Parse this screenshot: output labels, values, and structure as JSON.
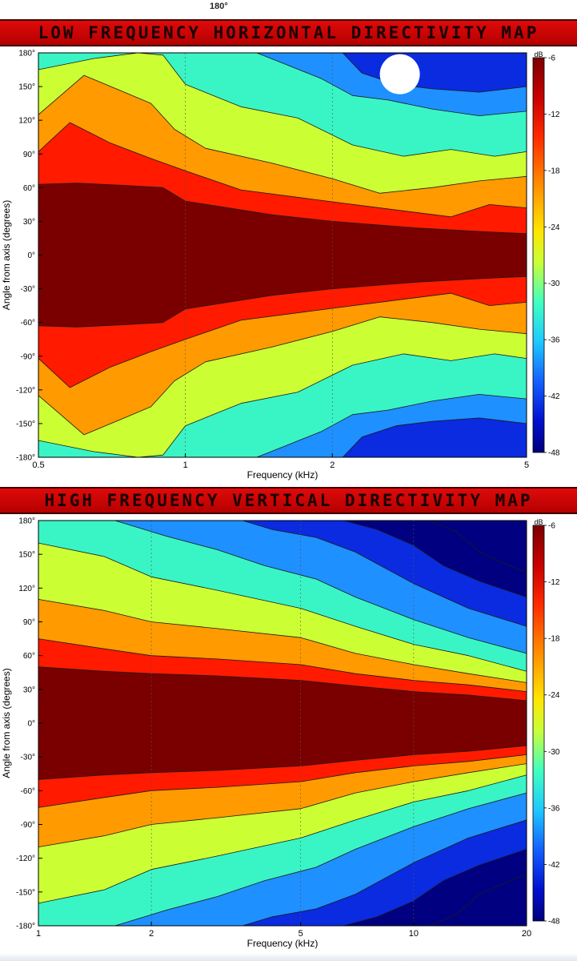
{
  "page": {
    "top_label": "180°"
  },
  "chart_data": [
    {
      "type": "heatmap",
      "title": "LOW FREQUENCY HORIZONTAL DIRECTIVITY MAP",
      "xlabel": "Frequency (kHz)",
      "ylabel": "Angle from axis (degrees)",
      "xscale": "log",
      "xlim": [
        0.5,
        5
      ],
      "ylim": [
        -180,
        180
      ],
      "x_ticks": [
        0.5,
        1,
        2,
        5
      ],
      "x_tick_labels": [
        "0.5",
        "1",
        "2",
        "5"
      ],
      "y_ticks": [
        180,
        150,
        120,
        90,
        60,
        30,
        0,
        -30,
        -60,
        -90,
        -120,
        -150,
        -180
      ],
      "y_tick_labels": [
        "180°",
        "150°",
        "120°",
        "90°",
        "60°",
        "30°",
        "0°",
        "-30°",
        "-60°",
        "-90°",
        "-120°",
        "-150°",
        "-180°"
      ],
      "grid": true,
      "colorbar": {
        "label": "dB",
        "range": [
          -48,
          -6
        ],
        "ticks": [
          -6,
          -12,
          -18,
          -24,
          -30,
          -36,
          -42,
          -48
        ],
        "tick_labels": [
          "-6",
          "-12",
          "-18",
          "-24",
          "-30",
          "-36",
          "-42",
          "-48"
        ]
      },
      "contour_levels": [
        {
          "level": -6,
          "color": "#7a0000"
        },
        {
          "level": -12,
          "color": "#ff1a00"
        },
        {
          "level": -18,
          "color": "#ff9a00"
        },
        {
          "level": -24,
          "color": "#ccff33"
        },
        {
          "level": -30,
          "color": "#39f5c5"
        },
        {
          "level": -36,
          "color": "#1e90ff"
        },
        {
          "level": -42,
          "color": "#0a2be0"
        }
      ],
      "boundaries": [
        {
          "level": -6,
          "points": [
            [
              0.5,
              63
            ],
            [
              0.6,
              64
            ],
            [
              0.75,
              62
            ],
            [
              0.9,
              60
            ],
            [
              1.0,
              48
            ],
            [
              1.5,
              36
            ],
            [
              2.0,
              30
            ],
            [
              3.0,
              24
            ],
            [
              4.0,
              21
            ],
            [
              5.0,
              19
            ]
          ]
        },
        {
          "level": -12,
          "points": [
            [
              0.5,
              92
            ],
            [
              0.58,
              118
            ],
            [
              0.7,
              100
            ],
            [
              0.85,
              86
            ],
            [
              1.0,
              75
            ],
            [
              1.3,
              58
            ],
            [
              1.8,
              50
            ],
            [
              2.4,
              43
            ],
            [
              3.5,
              34
            ],
            [
              4.2,
              45
            ],
            [
              5.0,
              42
            ]
          ]
        },
        {
          "level": -18,
          "points": [
            [
              0.5,
              125
            ],
            [
              0.62,
              160
            ],
            [
              0.75,
              145
            ],
            [
              0.85,
              135
            ],
            [
              0.95,
              112
            ],
            [
              1.1,
              95
            ],
            [
              1.5,
              82
            ],
            [
              2.0,
              68
            ],
            [
              2.5,
              55
            ],
            [
              3.2,
              60
            ],
            [
              4.0,
              66
            ],
            [
              5.0,
              70
            ]
          ]
        },
        {
          "level": -24,
          "points": [
            [
              0.5,
              165
            ],
            [
              0.65,
              175
            ],
            [
              0.8,
              180
            ],
            [
              0.9,
              178
            ],
            [
              1.0,
              152
            ],
            [
              1.3,
              132
            ],
            [
              1.7,
              122
            ],
            [
              2.2,
              98
            ],
            [
              2.8,
              88
            ],
            [
              3.5,
              94
            ],
            [
              4.3,
              88
            ],
            [
              5.0,
              92
            ]
          ]
        },
        {
          "level": -30,
          "points": [
            [
              1.4,
              180
            ],
            [
              1.6,
              170
            ],
            [
              1.9,
              157
            ],
            [
              2.2,
              142
            ],
            [
              2.6,
              138
            ],
            [
              3.2,
              130
            ],
            [
              4.0,
              124
            ],
            [
              5.0,
              128
            ]
          ]
        },
        {
          "level": -36,
          "points": [
            [
              2.1,
              180
            ],
            [
              2.3,
              162
            ],
            [
              2.7,
              152
            ],
            [
              3.2,
              148
            ],
            [
              4.0,
              145
            ],
            [
              5.0,
              150
            ]
          ]
        }
      ],
      "symmetry": "mirror about 0°",
      "annotation": "white circle marker near 2.8 kHz, 160°"
    },
    {
      "type": "heatmap",
      "title": "HIGH FREQUENCY VERTICAL DIRECTIVITY MAP",
      "xlabel": "Frequency (kHz)",
      "ylabel": "Angle from axis (degrees)",
      "xscale": "log",
      "xlim": [
        1,
        20
      ],
      "ylim": [
        -180,
        180
      ],
      "x_ticks": [
        1,
        2,
        5,
        10,
        20
      ],
      "x_tick_labels": [
        "1",
        "2",
        "5",
        "10",
        "20"
      ],
      "y_ticks": [
        180,
        150,
        120,
        90,
        60,
        30,
        0,
        -30,
        -60,
        -90,
        -120,
        -150,
        -180
      ],
      "y_tick_labels": [
        "180°",
        "150°",
        "120°",
        "90°",
        "60°",
        "30°",
        "0°",
        "-30°",
        "-60°",
        "-90°",
        "-120°",
        "-150°",
        "-180°"
      ],
      "grid": true,
      "colorbar": {
        "label": "dB",
        "range": [
          -48,
          -6
        ],
        "ticks": [
          -6,
          -12,
          -18,
          -24,
          -30,
          -36,
          -42,
          -48
        ],
        "tick_labels": [
          "-6",
          "-12",
          "-18",
          "-24",
          "-30",
          "-36",
          "-42",
          "-48"
        ]
      },
      "contour_levels": [
        {
          "level": -6,
          "color": "#7a0000"
        },
        {
          "level": -12,
          "color": "#ff1a00"
        },
        {
          "level": -18,
          "color": "#ff9a00"
        },
        {
          "level": -24,
          "color": "#ccff33"
        },
        {
          "level": -30,
          "color": "#39f5c5"
        },
        {
          "level": -36,
          "color": "#1e90ff"
        },
        {
          "level": -42,
          "color": "#0a2be0"
        },
        {
          "level": -48,
          "color": "#000080"
        }
      ],
      "boundaries": [
        {
          "level": -6,
          "points": [
            [
              1.0,
              50
            ],
            [
              1.5,
              46
            ],
            [
              2.0,
              44
            ],
            [
              3.0,
              42
            ],
            [
              5.0,
              38
            ],
            [
              7.0,
              33
            ],
            [
              10.0,
              28
            ],
            [
              14.0,
              25
            ],
            [
              20.0,
              20
            ]
          ]
        },
        {
          "level": -12,
          "points": [
            [
              1.0,
              75
            ],
            [
              1.5,
              66
            ],
            [
              2.0,
              60
            ],
            [
              3.0,
              57
            ],
            [
              5.0,
              52
            ],
            [
              7.0,
              44
            ],
            [
              10.0,
              38
            ],
            [
              14.0,
              34
            ],
            [
              20.0,
              28
            ]
          ]
        },
        {
          "level": -18,
          "points": [
            [
              1.0,
              110
            ],
            [
              1.5,
              100
            ],
            [
              2.0,
              90
            ],
            [
              3.0,
              84
            ],
            [
              5.0,
              76
            ],
            [
              7.0,
              62
            ],
            [
              10.0,
              52
            ],
            [
              14.0,
              44
            ],
            [
              20.0,
              36
            ]
          ]
        },
        {
          "level": -24,
          "points": [
            [
              1.0,
              160
            ],
            [
              1.5,
              148
            ],
            [
              2.0,
              130
            ],
            [
              3.0,
              118
            ],
            [
              5.0,
              102
            ],
            [
              7.0,
              86
            ],
            [
              10.0,
              70
            ],
            [
              14.0,
              60
            ],
            [
              20.0,
              46
            ]
          ]
        },
        {
          "level": -30,
          "points": [
            [
              1.6,
              180
            ],
            [
              2.2,
              166
            ],
            [
              3.0,
              154
            ],
            [
              4.0,
              140
            ],
            [
              5.5,
              128
            ],
            [
              7.0,
              112
            ],
            [
              10.0,
              92
            ],
            [
              14.0,
              76
            ],
            [
              20.0,
              62
            ]
          ]
        },
        {
          "level": -36,
          "points": [
            [
              3.5,
              180
            ],
            [
              4.2,
              172
            ],
            [
              5.5,
              165
            ],
            [
              7.0,
              152
            ],
            [
              10.0,
              124
            ],
            [
              14.0,
              102
            ],
            [
              20.0,
              86
            ]
          ]
        },
        {
          "level": -42,
          "points": [
            [
              6.5,
              180
            ],
            [
              8.0,
              172
            ],
            [
              10.0,
              158
            ],
            [
              12.0,
              140
            ],
            [
              15.0,
              126
            ],
            [
              20.0,
              112
            ]
          ]
        },
        {
          "level": -48,
          "points": [
            [
              11.0,
              180
            ],
            [
              13.0,
              170
            ],
            [
              15.0,
              152
            ],
            [
              18.0,
              140
            ],
            [
              20.0,
              134
            ]
          ]
        }
      ],
      "symmetry": "mirror about 0°"
    }
  ]
}
